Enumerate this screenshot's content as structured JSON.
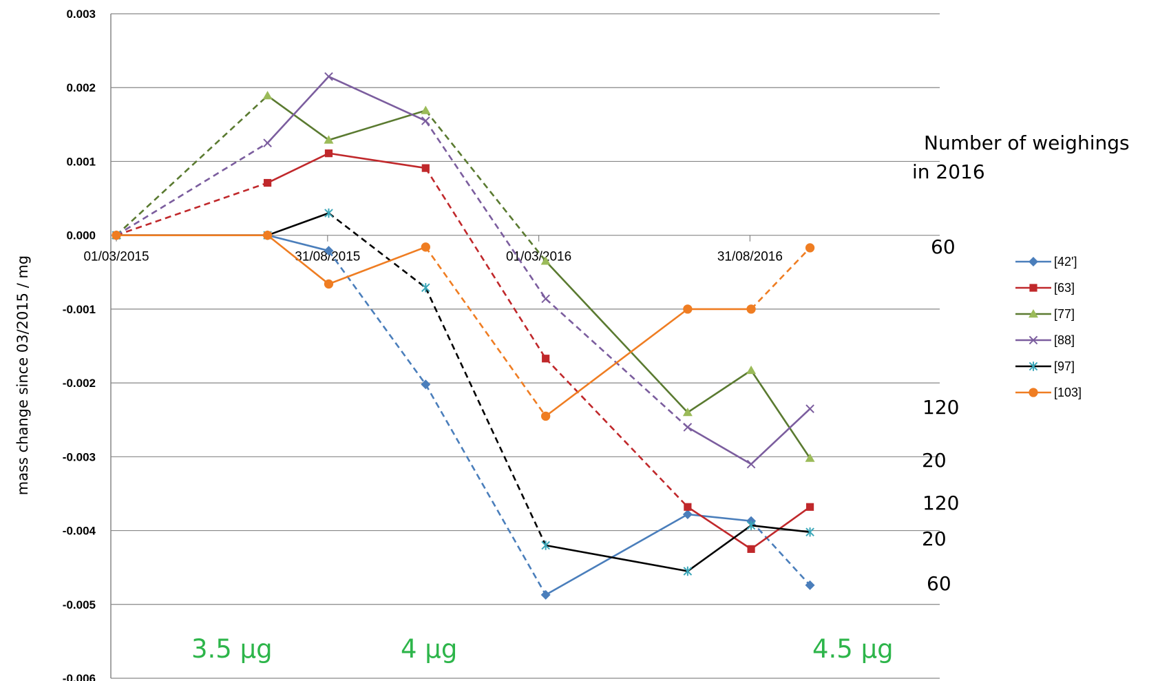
{
  "chart_data": {
    "type": "line",
    "title": "",
    "xlabel": "",
    "ylabel": "mass change since 03/2015  / mg",
    "ylim": [
      -0.006,
      0.003
    ],
    "yticks": [
      "0.003",
      "0.002",
      "0.001",
      "0.000",
      "-0.001",
      "-0.002",
      "-0.003",
      "-0.004",
      "-0.005",
      "-0.006"
    ],
    "xticks": [
      "01/03/2015",
      "31/08/2015",
      "01/03/2016",
      "31/08/2016"
    ],
    "grid": "horizontal",
    "legend_position": "right",
    "series": [
      {
        "name": "[42']",
        "color": "#4a7ebb",
        "marker": "diamond",
        "points": [
          {
            "x": "2015-03-01",
            "y": 0.0
          },
          {
            "x": "2015-07-10",
            "y": 0.0
          },
          {
            "x": "2015-09-01",
            "y": -0.00021
          },
          {
            "x": "2015-11-24",
            "y": -0.00202
          },
          {
            "x": "2016-03-07",
            "y": -0.00487
          },
          {
            "x": "2016-07-08",
            "y": -0.00378
          },
          {
            "x": "2016-09-01",
            "y": -0.00387
          },
          {
            "x": "2016-10-22",
            "y": -0.00474
          }
        ],
        "segment_styles": [
          "solid",
          "solid",
          "dashed",
          "dashed",
          "solid",
          "solid",
          "dashed"
        ]
      },
      {
        "name": "[63]",
        "color": "#c0282b",
        "marker": "square",
        "points": [
          {
            "x": "2015-03-01",
            "y": 0.0
          },
          {
            "x": "2015-07-10",
            "y": 0.00071
          },
          {
            "x": "2015-09-01",
            "y": 0.00111
          },
          {
            "x": "2015-11-24",
            "y": 0.00091
          },
          {
            "x": "2016-03-07",
            "y": -0.00167
          },
          {
            "x": "2016-07-08",
            "y": -0.00368
          },
          {
            "x": "2016-09-01",
            "y": -0.00425
          },
          {
            "x": "2016-10-22",
            "y": -0.00368
          }
        ],
        "segment_styles": [
          "dashed",
          "solid",
          "solid",
          "dashed",
          "dashed",
          "solid",
          "solid"
        ]
      },
      {
        "name": "[77]",
        "color": "#5a7a30",
        "marker_color": "#9bbb59",
        "marker": "triangle",
        "points": [
          {
            "x": "2015-03-01",
            "y": 0.0
          },
          {
            "x": "2015-07-10",
            "y": 0.00189
          },
          {
            "x": "2015-09-01",
            "y": 0.00129
          },
          {
            "x": "2015-11-24",
            "y": 0.00169
          },
          {
            "x": "2016-03-07",
            "y": -0.00035
          },
          {
            "x": "2016-07-08",
            "y": -0.0024
          },
          {
            "x": "2016-09-01",
            "y": -0.00183
          },
          {
            "x": "2016-10-22",
            "y": -0.00302
          }
        ],
        "segment_styles": [
          "dashed",
          "solid",
          "solid",
          "dashed",
          "solid",
          "solid",
          "solid"
        ]
      },
      {
        "name": "[88]",
        "color": "#7b5d9e",
        "marker": "x",
        "points": [
          {
            "x": "2015-03-01",
            "y": 0.0
          },
          {
            "x": "2015-07-10",
            "y": 0.00125
          },
          {
            "x": "2015-09-01",
            "y": 0.00215
          },
          {
            "x": "2015-11-24",
            "y": 0.00155
          },
          {
            "x": "2016-03-07",
            "y": -0.00086
          },
          {
            "x": "2016-07-08",
            "y": -0.0026
          },
          {
            "x": "2016-09-01",
            "y": -0.0031
          },
          {
            "x": "2016-10-22",
            "y": -0.00235
          }
        ],
        "segment_styles": [
          "dashed",
          "solid",
          "solid",
          "dashed",
          "dashed",
          "solid",
          "solid"
        ]
      },
      {
        "name": "[97]",
        "color": "#000000",
        "marker_color": "#3aa6b8",
        "marker": "star",
        "points": [
          {
            "x": "2015-03-01",
            "y": 0.0
          },
          {
            "x": "2015-07-10",
            "y": 0.0
          },
          {
            "x": "2015-09-01",
            "y": 0.0003
          },
          {
            "x": "2015-11-24",
            "y": -0.00071
          },
          {
            "x": "2016-03-07",
            "y": -0.0042
          },
          {
            "x": "2016-07-08",
            "y": -0.00455
          },
          {
            "x": "2016-09-01",
            "y": -0.00393
          },
          {
            "x": "2016-10-22",
            "y": -0.00402
          }
        ],
        "segment_styles": [
          "solid",
          "solid",
          "dashed",
          "dashed",
          "solid",
          "solid",
          "solid"
        ]
      },
      {
        "name": "[103]",
        "color": "#ef7d22",
        "marker": "circle",
        "points": [
          {
            "x": "2015-03-01",
            "y": 0.0
          },
          {
            "x": "2015-07-10",
            "y": 0.0
          },
          {
            "x": "2015-09-01",
            "y": -0.00066
          },
          {
            "x": "2015-11-24",
            "y": -0.00016
          },
          {
            "x": "2016-03-07",
            "y": -0.00245
          },
          {
            "x": "2016-07-08",
            "y": -0.001
          },
          {
            "x": "2016-09-01",
            "y": -0.001
          },
          {
            "x": "2016-10-22",
            "y": -0.00017
          }
        ],
        "segment_styles": [
          "solid",
          "solid",
          "solid",
          "dashed",
          "solid",
          "solid",
          "dashed"
        ]
      }
    ],
    "annotations": {
      "header": [
        "Number of weighings",
        "in 2016"
      ],
      "counts": [
        "60",
        "120",
        "20",
        "120",
        "20",
        "60"
      ],
      "notes": [
        "3.5 µg",
        "4 µg",
        "4.5 µg"
      ]
    }
  }
}
